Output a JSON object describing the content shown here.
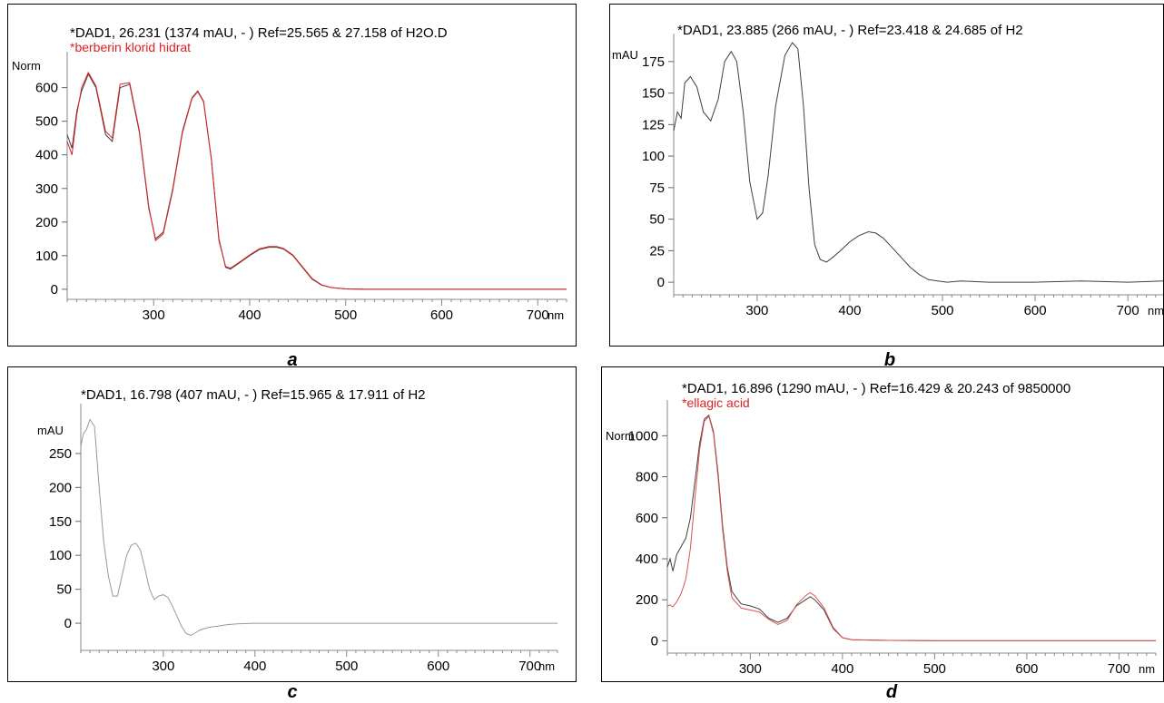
{
  "chart_data": [
    {
      "panel_label": "a",
      "type": "line",
      "title": "*DAD1, 26.231 (1374 mAU, - ) Ref=25.565 & 27.158 of H2O.D",
      "subtitle": "*berberin klorid hidrat",
      "ylabel": "Norm",
      "xlabel": "nm",
      "xlim": [
        210,
        730
      ],
      "ylim": [
        -30,
        680
      ],
      "xticks": [
        "300",
        "400",
        "500",
        "600",
        "700"
      ],
      "yticks": [
        "0",
        "100",
        "200",
        "300",
        "400",
        "500",
        "600"
      ],
      "series": [
        {
          "color": "#404040",
          "x": [
            210,
            215,
            220,
            225,
            232,
            240,
            250,
            257,
            265,
            275,
            285,
            295,
            302,
            310,
            320,
            330,
            340,
            346,
            352,
            360,
            368,
            375,
            380,
            390,
            400,
            410,
            420,
            428,
            435,
            445,
            455,
            465,
            475,
            485,
            500,
            520,
            550,
            600,
            650,
            700,
            730
          ],
          "y": [
            460,
            420,
            530,
            590,
            640,
            600,
            460,
            440,
            600,
            610,
            470,
            240,
            150,
            170,
            300,
            470,
            570,
            590,
            560,
            390,
            150,
            65,
            60,
            80,
            100,
            118,
            125,
            125,
            120,
            100,
            65,
            30,
            12,
            5,
            1,
            0,
            0,
            0,
            0,
            0,
            0
          ]
        },
        {
          "color": "#e02020",
          "x": [
            210,
            215,
            220,
            225,
            232,
            240,
            250,
            257,
            265,
            275,
            285,
            295,
            302,
            310,
            320,
            330,
            340,
            346,
            352,
            360,
            368,
            375,
            380,
            390,
            400,
            410,
            420,
            428,
            435,
            445,
            455,
            465,
            475,
            485,
            500,
            520,
            550,
            600,
            650,
            700,
            730
          ],
          "y": [
            440,
            400,
            520,
            600,
            645,
            605,
            470,
            450,
            610,
            615,
            475,
            245,
            145,
            165,
            295,
            465,
            568,
            588,
            558,
            388,
            145,
            68,
            63,
            82,
            102,
            120,
            127,
            127,
            122,
            102,
            67,
            32,
            13,
            5,
            1,
            0,
            0,
            0,
            0,
            0,
            0
          ]
        }
      ]
    },
    {
      "panel_label": "b",
      "type": "line",
      "title": "*DAD1, 23.885 (266 mAU, - ) Ref=23.418 & 24.685 of H2",
      "ylabel": "mAU",
      "xlabel": "nm",
      "xlim": [
        210,
        740
      ],
      "ylim": [
        -10,
        190
      ],
      "xticks": [
        "300",
        "400",
        "500",
        "600",
        "700"
      ],
      "yticks": [
        "0",
        "25",
        "50",
        "75",
        "100",
        "125",
        "150",
        "175"
      ],
      "series": [
        {
          "color": "#404040",
          "x": [
            210,
            214,
            218,
            222,
            228,
            235,
            242,
            250,
            258,
            265,
            272,
            278,
            285,
            292,
            300,
            306,
            312,
            320,
            330,
            338,
            344,
            350,
            356,
            362,
            368,
            375,
            382,
            390,
            400,
            410,
            420,
            428,
            436,
            445,
            455,
            465,
            475,
            485,
            495,
            505,
            520,
            550,
            600,
            650,
            700,
            740
          ],
          "y": [
            120,
            135,
            130,
            158,
            163,
            155,
            135,
            128,
            145,
            175,
            183,
            175,
            135,
            80,
            50,
            55,
            85,
            140,
            180,
            190,
            185,
            140,
            75,
            30,
            18,
            16,
            20,
            25,
            32,
            37,
            40,
            39,
            35,
            28,
            20,
            12,
            6,
            2,
            1,
            0,
            1,
            0,
            0,
            1,
            0,
            1
          ]
        }
      ]
    },
    {
      "panel_label": "c",
      "type": "line",
      "title": "*DAD1, 16.798 (407 mAU, - ) Ref=15.965 & 17.911 of H2",
      "ylabel": "mAU",
      "xlabel": "nm",
      "xlim": [
        210,
        730
      ],
      "ylim": [
        -40,
        310
      ],
      "xticks": [
        "300",
        "400",
        "500",
        "600",
        "700"
      ],
      "yticks": [
        "0",
        "50",
        "100",
        "150",
        "200",
        "250"
      ],
      "series": [
        {
          "color": "#999999",
          "x": [
            210,
            213,
            216,
            220,
            225,
            230,
            235,
            240,
            245,
            250,
            255,
            260,
            265,
            270,
            275,
            280,
            285,
            290,
            295,
            300,
            305,
            310,
            315,
            320,
            325,
            330,
            335,
            340,
            350,
            360,
            370,
            380,
            400,
            450,
            500,
            600,
            700,
            730
          ],
          "y": [
            260,
            280,
            285,
            300,
            290,
            200,
            120,
            70,
            40,
            40,
            70,
            100,
            115,
            118,
            108,
            80,
            50,
            35,
            40,
            42,
            38,
            25,
            10,
            -5,
            -15,
            -18,
            -14,
            -10,
            -6,
            -4,
            -2,
            -1,
            0,
            0,
            0,
            0,
            0,
            0
          ]
        }
      ]
    },
    {
      "panel_label": "d",
      "type": "line",
      "title": "*DAD1, 16.896 (1290 mAU, - ) Ref=16.429 & 20.243 of 9850000",
      "subtitle": "*ellagic acid",
      "ylabel": "Norm",
      "xlabel": "nm",
      "xlim": [
        210,
        740
      ],
      "ylim": [
        -60,
        1130
      ],
      "xticks": [
        "300",
        "400",
        "500",
        "600",
        "700"
      ],
      "yticks": [
        "0",
        "200",
        "400",
        "600",
        "800",
        "1000"
      ],
      "series": [
        {
          "color": "#404040",
          "x": [
            210,
            213,
            216,
            220,
            225,
            230,
            235,
            240,
            245,
            250,
            255,
            260,
            265,
            270,
            275,
            280,
            290,
            300,
            310,
            320,
            330,
            340,
            350,
            360,
            365,
            370,
            380,
            390,
            400,
            410,
            450,
            500,
            600,
            700,
            740
          ],
          "y": [
            360,
            400,
            340,
            420,
            460,
            500,
            600,
            780,
            960,
            1080,
            1100,
            1020,
            820,
            560,
            360,
            240,
            180,
            170,
            155,
            110,
            90,
            110,
            170,
            200,
            215,
            200,
            150,
            60,
            15,
            5,
            2,
            0,
            0,
            0,
            0
          ]
        },
        {
          "color": "#e05050",
          "x": [
            210,
            213,
            216,
            220,
            225,
            230,
            235,
            240,
            245,
            250,
            255,
            260,
            265,
            270,
            275,
            280,
            290,
            300,
            310,
            320,
            330,
            340,
            350,
            360,
            365,
            370,
            380,
            390,
            400,
            410,
            450,
            500,
            600,
            700,
            740
          ],
          "y": [
            170,
            175,
            165,
            190,
            230,
            300,
            450,
            700,
            930,
            1070,
            1095,
            1010,
            800,
            540,
            340,
            210,
            160,
            150,
            140,
            105,
            80,
            100,
            175,
            220,
            235,
            220,
            160,
            65,
            15,
            5,
            2,
            0,
            0,
            0,
            0
          ]
        }
      ]
    }
  ]
}
